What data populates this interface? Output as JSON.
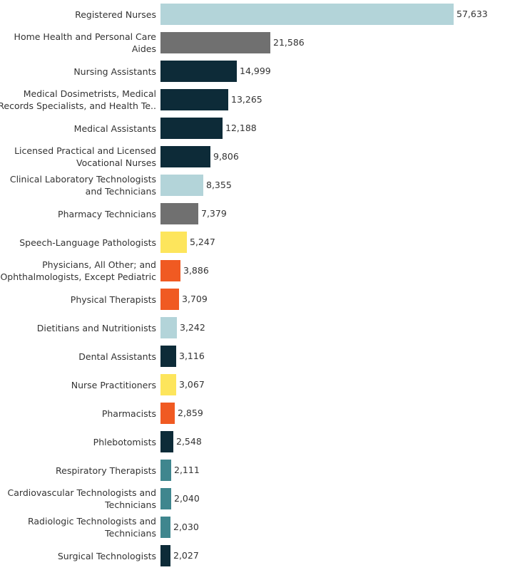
{
  "chart_data": {
    "type": "bar",
    "orientation": "horizontal",
    "categories": [
      "Registered Nurses",
      "Home Health and Personal Care Aides",
      "Nursing Assistants",
      "Medical Dosimetrists, Medical Records Specialists, and Health Te..",
      "Medical Assistants",
      "Licensed Practical and Licensed Vocational Nurses",
      "Clinical Laboratory Technologists and Technicians",
      "Pharmacy Technicians",
      "Speech-Language Pathologists",
      "Physicians, All Other; and Ophthalmologists, Except Pediatric",
      "Physical Therapists",
      "Dietitians and Nutritionists",
      "Dental Assistants",
      "Nurse Practitioners",
      "Pharmacists",
      "Phlebotomists",
      "Respiratory Therapists",
      "Cardiovascular Technologists and Technicians",
      "Radiologic Technologists and Technicians",
      "Surgical Technologists"
    ],
    "values": [
      57633,
      21586,
      14999,
      13265,
      12188,
      9806,
      8355,
      7379,
      5247,
      3886,
      3709,
      3242,
      3116,
      3067,
      2859,
      2548,
      2111,
      2040,
      2030,
      2027
    ],
    "value_labels": [
      "57,633",
      "21,586",
      "14,999",
      "13,265",
      "12,188",
      "9,806",
      "8,355",
      "7,379",
      "5,247",
      "3,886",
      "3,709",
      "3,242",
      "3,116",
      "3,067",
      "2,859",
      "2,548",
      "2,111",
      "2,040",
      "2,030",
      "2,027"
    ],
    "colors": [
      "#b3d4d9",
      "#707070",
      "#0d2b38",
      "#0d2b38",
      "#0d2b38",
      "#0d2b38",
      "#b3d4d9",
      "#707070",
      "#fde55c",
      "#f05a22",
      "#f05a22",
      "#b3d4d9",
      "#0d2b38",
      "#fde55c",
      "#f05a22",
      "#0d2b38",
      "#3f868e",
      "#3f868e",
      "#3f868e",
      "#0d2b38"
    ],
    "xlim": [
      0,
      57633
    ],
    "title": "",
    "xlabel": "",
    "ylabel": "",
    "grid": false,
    "legend": "none"
  }
}
